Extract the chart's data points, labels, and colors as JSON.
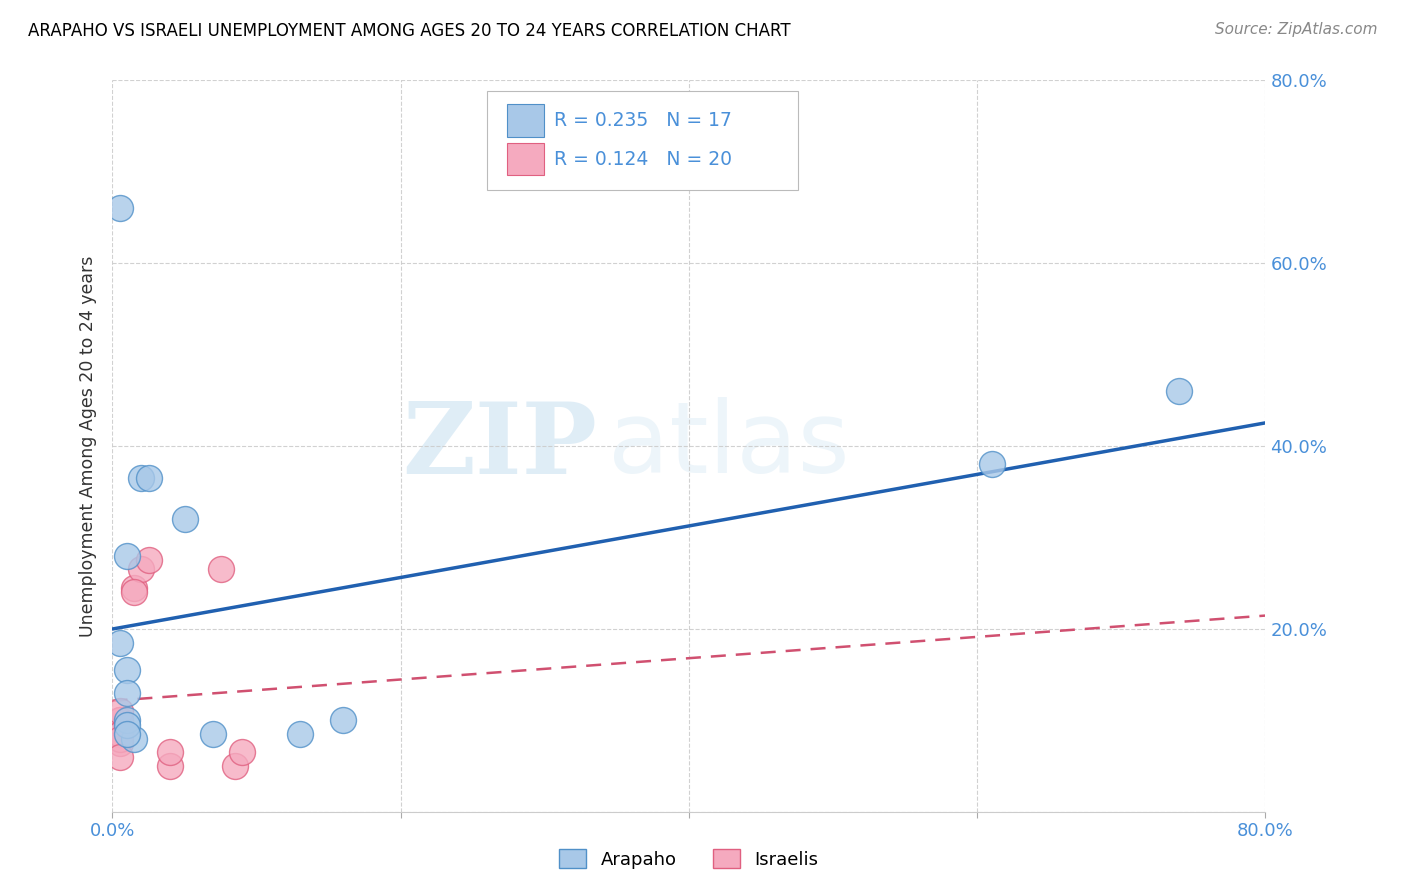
{
  "title": "ARAPAHO VS ISRAELI UNEMPLOYMENT AMONG AGES 20 TO 24 YEARS CORRELATION CHART",
  "source": "Source: ZipAtlas.com",
  "ylabel": "Unemployment Among Ages 20 to 24 years",
  "xlim": [
    0.0,
    0.8
  ],
  "ylim": [
    0.0,
    0.8
  ],
  "xticks": [
    0.0,
    0.2,
    0.4,
    0.6,
    0.8
  ],
  "yticks": [
    0.0,
    0.2,
    0.4,
    0.6,
    0.8
  ],
  "xtick_labels": [
    "0.0%",
    "",
    "",
    "",
    "80.0%"
  ],
  "ytick_labels_right": [
    "",
    "20.0%",
    "40.0%",
    "60.0%",
    "80.0%"
  ],
  "arapaho_x": [
    0.01,
    0.02,
    0.025,
    0.05,
    0.01,
    0.01,
    0.015,
    0.01,
    0.01,
    0.01,
    0.005,
    0.61,
    0.74,
    0.005,
    0.16,
    0.13,
    0.07
  ],
  "arapaho_y": [
    0.28,
    0.365,
    0.365,
    0.32,
    0.155,
    0.13,
    0.08,
    0.1,
    0.095,
    0.085,
    0.66,
    0.38,
    0.46,
    0.185,
    0.1,
    0.085,
    0.085
  ],
  "israeli_x": [
    0.005,
    0.005,
    0.005,
    0.015,
    0.02,
    0.005,
    0.005,
    0.005,
    0.005,
    0.005,
    0.005,
    0.005,
    0.005,
    0.015,
    0.025,
    0.04,
    0.04,
    0.075,
    0.085,
    0.09
  ],
  "israeli_y": [
    0.09,
    0.1,
    0.085,
    0.245,
    0.265,
    0.09,
    0.1,
    0.085,
    0.11,
    0.075,
    0.085,
    0.08,
    0.06,
    0.24,
    0.275,
    0.05,
    0.065,
    0.265,
    0.05,
    0.065
  ],
  "arapaho_color": "#a8c8e8",
  "israeli_color": "#f5aabf",
  "arapaho_edge_color": "#5090c8",
  "israeli_edge_color": "#e06080",
  "arapaho_line_color": "#2060b0",
  "israeli_line_color": "#d05070",
  "tick_color": "#4a90d9",
  "arapaho_R": 0.235,
  "arapaho_N": 17,
  "israeli_R": 0.124,
  "israeli_N": 20,
  "watermark_zip": "ZIP",
  "watermark_atlas": "atlas",
  "background_color": "#ffffff",
  "grid_color": "#cccccc",
  "legend_edge_color": "#bbbbbb"
}
